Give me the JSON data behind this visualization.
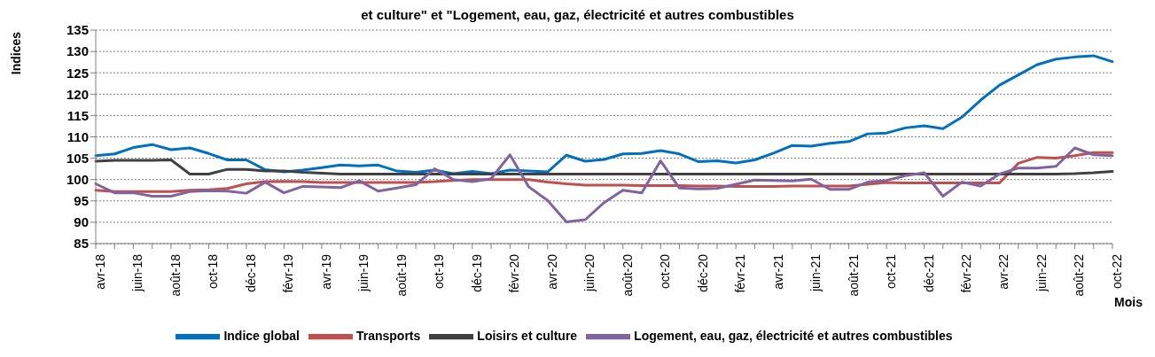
{
  "chart_data": {
    "type": "line",
    "title": "et culture\" et \"Logement, eau, gaz, électricité et autres combustibles",
    "xlabel": "Mois",
    "ylabel": "Indices",
    "categories": [
      "avr-18",
      null,
      "juin-18",
      null,
      "août-18",
      null,
      "oct-18",
      null,
      "déc-18",
      null,
      "févr-19",
      null,
      "avr-19",
      null,
      "juin-19",
      null,
      "août-19",
      null,
      "oct-19",
      null,
      "déc-19",
      null,
      "févr-20",
      null,
      "avr-20",
      null,
      "juin-20",
      null,
      "août-20",
      null,
      "oct-20",
      null,
      "déc-20",
      null,
      "févr-21",
      null,
      "avr-21",
      null,
      "juin-21",
      null,
      "août-21",
      null,
      "oct-21",
      null,
      "déc-21",
      null,
      "févr-22",
      null,
      "avr-22",
      null,
      "juin-22",
      null,
      "août-22",
      null,
      "oct-22"
    ],
    "series": [
      {
        "name": "Indice global",
        "color": "#0070c0",
        "values": [
          105.6,
          106,
          107.5,
          108.2,
          107,
          107.4,
          106.1,
          104.6,
          104.6,
          102.3,
          101.8,
          102.2,
          102.8,
          103.4,
          103.2,
          103.4,
          102,
          101.7,
          102.2,
          101.4,
          101.9,
          101.4,
          102.2,
          102,
          101.8,
          105.7,
          104.3,
          104.7,
          106,
          106.1,
          106.8,
          106,
          104.2,
          104.4,
          103.9,
          104.6,
          106.2,
          108,
          107.8,
          108.5,
          108.9,
          110.7,
          110.9,
          112.1,
          112.6,
          111.9,
          114.6,
          118.6,
          122.1,
          124.5,
          126.9,
          128.2,
          128.7,
          129,
          127.6
        ]
      },
      {
        "name": "Transports",
        "color": "#c0504d",
        "values": [
          97.5,
          97.2,
          97.2,
          97.2,
          97.2,
          97.5,
          97.6,
          97.9,
          99,
          99.5,
          99.6,
          99.5,
          99.3,
          99.3,
          99.3,
          99.3,
          99.3,
          99.3,
          99.5,
          99.8,
          100,
          100,
          100,
          100,
          99.4,
          99,
          98.7,
          98.7,
          98.7,
          98.6,
          98.6,
          98.6,
          98.5,
          98.5,
          98.4,
          98.4,
          98.4,
          98.5,
          98.5,
          98.5,
          98.5,
          98.9,
          99.3,
          99.2,
          99.2,
          99.2,
          99.2,
          99.2,
          99.2,
          103.8,
          105.2,
          105,
          105.6,
          106.3,
          106.3
        ]
      },
      {
        "name": "Loisirs et culture",
        "color": "#404040",
        "values": [
          104.3,
          104.5,
          104.5,
          104.5,
          104.6,
          101.3,
          101.3,
          102.4,
          102.4,
          102,
          102,
          101.7,
          101.5,
          101.3,
          101.3,
          101.3,
          101.3,
          101.3,
          101.3,
          101.3,
          101.3,
          101.3,
          101.3,
          101.3,
          101.3,
          101.3,
          101.3,
          101.3,
          101.3,
          101.3,
          101.3,
          101.3,
          101.3,
          101.3,
          101.3,
          101.3,
          101.3,
          101.3,
          101.3,
          101.3,
          101.3,
          101.3,
          101.3,
          101.3,
          101.3,
          101.3,
          101.3,
          101.3,
          101.3,
          101.3,
          101.3,
          101.3,
          101.4,
          101.6,
          101.9
        ]
      },
      {
        "name": "Logement, eau, gaz, électricité et autres combustibles",
        "color": "#8064a2",
        "values": [
          99,
          96.9,
          96.9,
          96.1,
          96.1,
          97.2,
          97.4,
          97.3,
          96.8,
          99.4,
          96.9,
          98.4,
          98.3,
          98.1,
          99.7,
          97.3,
          98,
          98.8,
          102.5,
          100,
          99.5,
          100.2,
          105.8,
          98.3,
          95.1,
          90.1,
          90.6,
          94.6,
          97.5,
          96.9,
          104.4,
          98,
          97.8,
          97.9,
          98.9,
          99.9,
          99.8,
          99.7,
          100.1,
          97.7,
          97.7,
          99.4,
          99.8,
          100.9,
          101.6,
          96.1,
          99.4,
          98.5,
          101.3,
          102.7,
          102.7,
          103.1,
          107.4,
          105.8,
          105.6
        ]
      }
    ],
    "ylim": [
      85,
      135
    ],
    "yticks": [
      85,
      90,
      95,
      100,
      105,
      110,
      115,
      120,
      125,
      130,
      135
    ],
    "grid": "y",
    "legend": "bottom",
    "marker": "none",
    "line_style": "solid"
  }
}
